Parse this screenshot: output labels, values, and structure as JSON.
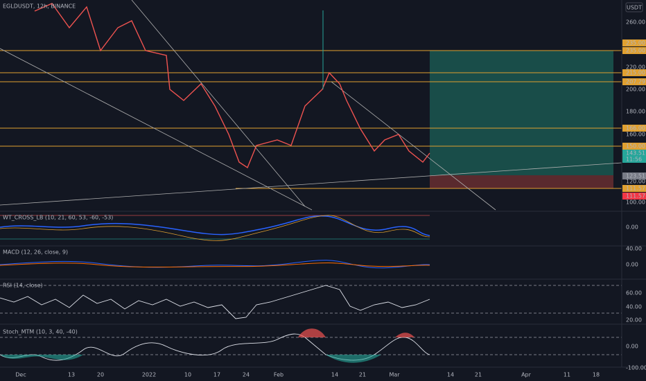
{
  "header": {
    "symbol": "EGLDUSDT, 12h, BINANCE",
    "currency": "USDT"
  },
  "price_axis": [
    "260.00",
    "235.00",
    "235.00",
    "220.00",
    "215.00",
    "207.29",
    "200.00",
    "180.00",
    "166.00",
    "160.00",
    "150.00",
    "143.51",
    "11:56",
    "123.51",
    "120.00",
    "111.57",
    "111.57",
    "100.00"
  ],
  "panes": [
    {
      "title": "WT_CROSS_LB (10, 21, 60, 53, -60, -53)",
      "labels": [
        "0.00"
      ]
    },
    {
      "title": "MACD (12, 26, close, 9)",
      "labels": [
        "40.00",
        "0.00"
      ]
    },
    {
      "title": "RSI (14, close)",
      "labels": [
        "60.00",
        "40.00",
        "20.00"
      ]
    },
    {
      "title": "Stoch_MTM (10, 3, 40, -40)",
      "labels": [
        "0.00",
        "-100.00"
      ]
    }
  ],
  "time_axis": [
    "Dec",
    "13",
    "20",
    "2022",
    "10",
    "17",
    "24",
    "Feb",
    "14",
    "21",
    "Mar",
    "14",
    "21",
    "Apr",
    "11",
    "18"
  ]
}
